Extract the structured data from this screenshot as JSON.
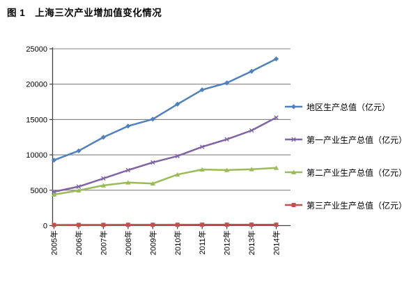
{
  "figure": {
    "title": "图 1　上海三次产业增加值变化情况"
  },
  "chart_data": {
    "type": "line",
    "title": "图 1　上海三次产业增加值变化情况",
    "xlabel": "",
    "ylabel": "",
    "categories": [
      "2005年",
      "2006年",
      "2007年",
      "2008年",
      "2009年",
      "2010年",
      "2011年",
      "2012年",
      "2013年",
      "2014年"
    ],
    "series": [
      {
        "name": "地区生产总值（亿元）",
        "color": "#4F81BD",
        "marker": "diamond",
        "values": [
          9250,
          10570,
          12490,
          14070,
          15050,
          17170,
          19200,
          20180,
          21820,
          23570
        ]
      },
      {
        "name": "第一产业生产总值（亿元）",
        "color": "#8064A2",
        "marker": "x",
        "values": [
          4780,
          5510,
          6660,
          7840,
          8930,
          9830,
          11140,
          12200,
          13450,
          15280
        ]
      },
      {
        "name": "第二产业生产总值（亿元）",
        "color": "#9BBB59",
        "marker": "triangle",
        "values": [
          4380,
          4970,
          5680,
          6090,
          5940,
          7220,
          7930,
          7850,
          7960,
          8160
        ]
      },
      {
        "name": "第三产业生产总值（亿元）",
        "color": "#C0504D",
        "marker": "square",
        "values": [
          90,
          94,
          102,
          112,
          114,
          114,
          125,
          128,
          129,
          124
        ]
      }
    ],
    "ylim": [
      0,
      25000
    ],
    "y_ticks": [
      0,
      5000,
      10000,
      15000,
      20000,
      25000
    ],
    "grid": true,
    "legend_position": "right",
    "axis_color": "#404040",
    "grid_color": "#808080",
    "tick_label_color": "#000000"
  }
}
